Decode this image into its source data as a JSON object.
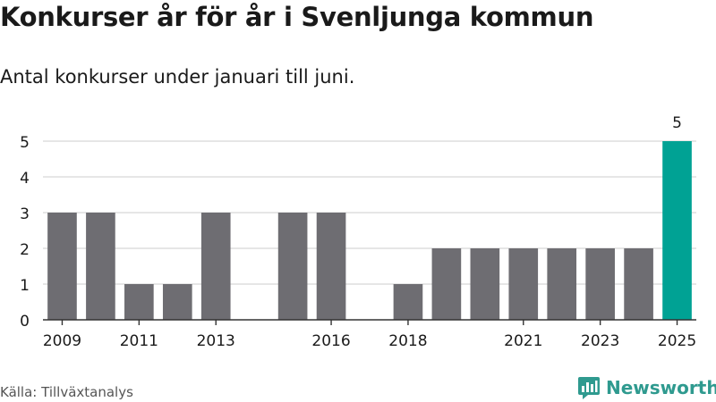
{
  "header": {
    "title": "Konkurser år för år i Svenljunga kommun",
    "subtitle": "Antal konkurser under januari till juni."
  },
  "footer": {
    "source": "Källa: Tillväxtanalys",
    "brand": "Newsworthy"
  },
  "colors": {
    "bar": "#6e6d72",
    "highlight": "#00a294",
    "grid": "#d6d6d6",
    "axis": "#333333",
    "brand": "#2f9a8f"
  },
  "chart_data": {
    "type": "bar",
    "categories": [
      "2009",
      "2010",
      "2011",
      "2012",
      "2013",
      "2014",
      "2015",
      "2016",
      "2017",
      "2018",
      "2019",
      "2020",
      "2021",
      "2022",
      "2023",
      "2024",
      "2025"
    ],
    "values": [
      3,
      3,
      1,
      1,
      3,
      0,
      3,
      3,
      0,
      1,
      2,
      2,
      2,
      2,
      2,
      2,
      5
    ],
    "tick_labels": [
      "2009",
      "2011",
      "2013",
      "2016",
      "2018",
      "2021",
      "2023",
      "2025"
    ],
    "yticks": [
      0,
      1,
      2,
      3,
      4,
      5
    ],
    "ylim": [
      0,
      5
    ],
    "highlight_category": "2025",
    "highlight_label": "5",
    "grid": true,
    "xlabel": "",
    "ylabel": ""
  }
}
